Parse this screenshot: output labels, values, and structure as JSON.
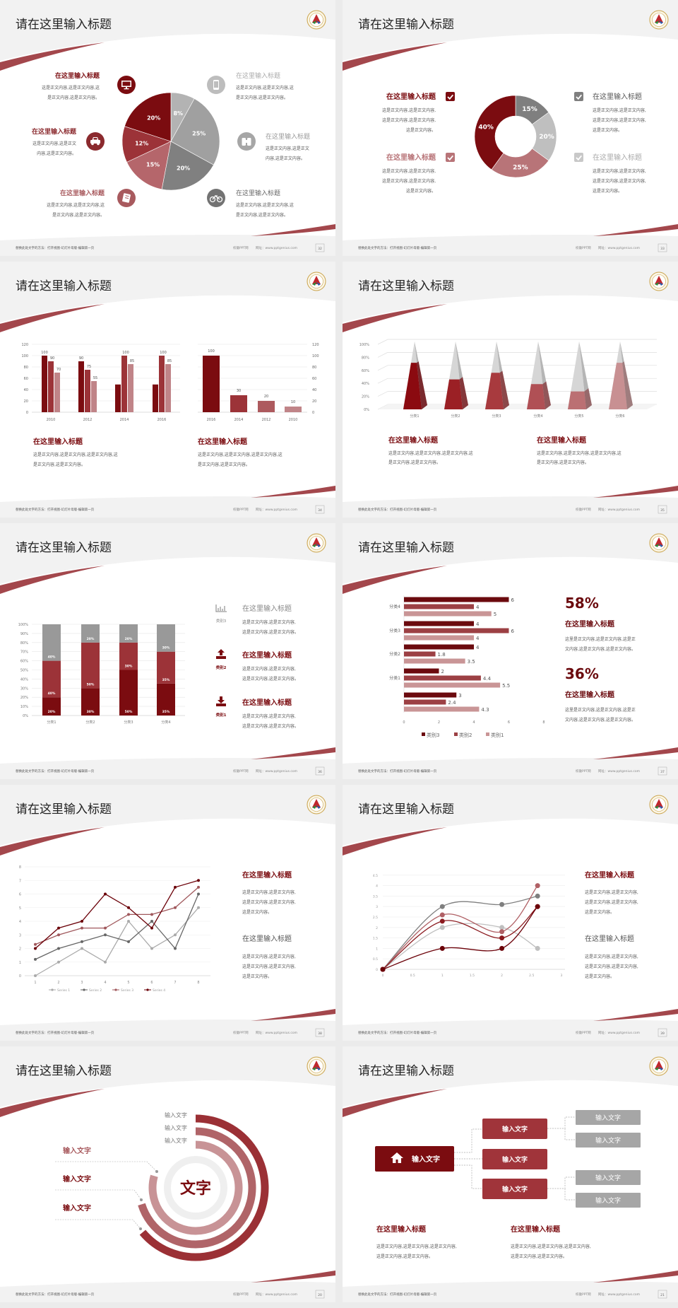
{
  "footer": {
    "left": "替换此处文字的方法：打开视图-幻灯片母版-编辑第一页",
    "site": "校徽PPT网",
    "url": "网址：www.pptgenius.com"
  },
  "colors": {
    "maroon": "#7b0c10",
    "red": "#9c3338",
    "rose": "#b26a6e",
    "pink": "#c99596",
    "gray": "#7f7f7f",
    "light_gray": "#bfbfbf"
  },
  "slides": [
    {
      "title": "请在这里输入标题",
      "page": "32",
      "items": [
        {
          "title": "在这里输入标题",
          "icon": "monitor-icon",
          "lines": [
            "这是正文内容,这是正文内容,这",
            "是正文内容,这是正文内容。"
          ]
        },
        {
          "title": "在这里输入标题",
          "icon": "car-icon",
          "lines": [
            "这是正文内容,这是正文",
            "内容,这是正文内容。"
          ]
        },
        {
          "title": "在这里输入标题",
          "icon": "book-icon",
          "lines": [
            "这是正文内容,这是正文内容,这",
            "是正文内容,这是正文内容。"
          ]
        },
        {
          "title": "在这里输入标题",
          "icon": "phone-icon",
          "lines": [
            "这是正文内容,这是正文内容,这",
            "是正文内容,这是正文内容。"
          ]
        },
        {
          "title": "在这里输入标题",
          "icon": "binoculars-icon",
          "lines": [
            "这是正文内容,这是正文",
            "内容,这是正文内容。"
          ]
        },
        {
          "title": "在这里输入标题",
          "icon": "bicycle-icon",
          "lines": [
            "这是正文内容,这是正文内容,这",
            "是正文内容,这是正文内容。"
          ]
        }
      ]
    },
    {
      "title": "请在这里输入标题",
      "page": "33",
      "items": [
        {
          "title": "在这里输入标题",
          "icon": "checkbox-checked-icon",
          "lines": [
            "这是正文内容,这是正文内容,",
            "这是正文内容,这是正文内容,",
            "这是正文内容。"
          ]
        },
        {
          "title": "在这里输入标题",
          "icon": "checkbox-checked-icon",
          "lines": [
            "这是正文内容,这是正文内容,",
            "这是正文内容,这是正文内容,",
            "这是正文内容。"
          ]
        },
        {
          "title": "在这里输入标题",
          "icon": "checkbox-checked-icon",
          "lines": [
            "这是正文内容,这是正文内容,",
            "这是正文内容,这是正文内容,",
            "这是正文内容。"
          ]
        },
        {
          "title": "在这里输入标题",
          "icon": "checkbox-checked-icon",
          "lines": [
            "这是正文内容,这是正文内容,",
            "这是正文内容,这是正文内容,",
            "这是正文内容。"
          ]
        }
      ]
    },
    {
      "title": "请在这里输入标题",
      "page": "34",
      "items": [
        {
          "title": "在这里输入标题",
          "lines": [
            "这是正文内容,这是正文内容,这是正文内容,这",
            "是正文内容,这是正文内容。"
          ]
        },
        {
          "title": "在这里输入标题",
          "lines": [
            "这是正文内容,这是正文内容,这是正文内容,这",
            "是正文内容,这是正文内容。"
          ]
        }
      ]
    },
    {
      "title": "请在这里输入标题",
      "page": "35",
      "items": [
        {
          "title": "在这里输入标题",
          "lines": [
            "这是正文内容,这是正文内容,这是正文内容,这",
            "是正文内容,这是正文内容。"
          ]
        },
        {
          "title": "在这里输入标题",
          "lines": [
            "这是正文内容,这是正文内容,这是正文内容,这",
            "是正文内容,这是正文内容。"
          ]
        }
      ]
    },
    {
      "title": "请在这里输入标题",
      "page": "36",
      "items": [
        {
          "label": "类别3",
          "icon": "bar-chart-icon",
          "title": "在这里输入标题",
          "lines": [
            "这是正文内容,这是正文内容,",
            "这是正文内容,这是正文内容。"
          ]
        },
        {
          "label": "类别2",
          "icon": "upload-icon",
          "title": "在这里输入标题",
          "lines": [
            "这是正文内容,这是正文内容,",
            "这是正文内容,这是正文内容。"
          ]
        },
        {
          "label": "类别1",
          "icon": "download-icon",
          "title": "在这里输入标题",
          "lines": [
            "这是正文内容,这是正文内容,",
            "这是正文内容,这是正文内容。"
          ]
        }
      ]
    },
    {
      "title": "请在这里输入标题",
      "page": "37",
      "items": [
        {
          "value": "58%",
          "title": "在这里输入标题",
          "lines": [
            "这里是正文内容,这是正文内容,这是正",
            "文内容,这是正文内容,这是正文内容。"
          ]
        },
        {
          "value": "36%",
          "title": "在这里输入标题",
          "lines": [
            "这里是正文内容,这是正文内容,这是正",
            "文内容,这是正文内容,这是正文内容。"
          ]
        }
      ]
    },
    {
      "title": "请在这里输入标题",
      "page": "38",
      "items": [
        {
          "title": "在这里输入标题",
          "lines": [
            "这是正文内容,这是正文内容,",
            "这是正文内容,这是正文内容,",
            "这是正文内容。"
          ]
        },
        {
          "title": "在这里输入标题",
          "lines": [
            "这是正文内容,这是正文内容,",
            "这是正文内容,这是正文内容,",
            "这是正文内容。"
          ]
        }
      ]
    },
    {
      "title": "请在这里输入标题",
      "page": "39",
      "items": [
        {
          "title": "在这里输入标题",
          "lines": [
            "这是正文内容,这是正文内容,",
            "这是正文内容,这是正文内容,",
            "这是正文内容。"
          ]
        },
        {
          "title": "在这里输入标题",
          "lines": [
            "这是正文内容,这是正文内容,",
            "这是正文内容,这是正文内容,",
            "这是正文内容。"
          ]
        }
      ]
    },
    {
      "title": "请在这里输入标题",
      "page": "20",
      "center": "文字",
      "ring_labels": [
        "输入文字",
        "输入文字",
        "输入文字"
      ],
      "side_labels": [
        "输入文字",
        "输入文字",
        "输入文字"
      ]
    },
    {
      "title": "请在这里输入标题",
      "page": "21",
      "root": "输入文字",
      "branches": [
        "输入文字",
        "输入文字",
        "输入文字"
      ],
      "leaves": [
        "输入文字",
        "输入文字",
        "输入文字",
        "输入文字"
      ],
      "items": [
        {
          "title": "在这里输入标题",
          "lines": [
            "这是正文内容,这是正文内容,这是正文内容,",
            "这是正文内容,这是正文内容。"
          ]
        },
        {
          "title": "在这里输入标题",
          "lines": [
            "这是正文内容,这是正文内容,这是正文内容,",
            "这是正文内容,这是正文内容。"
          ]
        }
      ]
    }
  ],
  "chart_data": [
    {
      "type": "pie",
      "values": [
        8,
        25,
        20,
        15,
        12,
        20
      ],
      "labels": [
        "8%",
        "25%",
        "20%",
        "15%",
        "12%",
        "20%"
      ],
      "colors": [
        "#b3b3b3",
        "#a0a0a0",
        "#808080",
        "#b5666b",
        "#9c3338",
        "#7b0c10"
      ]
    },
    {
      "type": "pie",
      "donut": true,
      "values": [
        15,
        20,
        25,
        40
      ],
      "labels": [
        "15%",
        "20%",
        "25%",
        "40%"
      ],
      "colors": [
        "#7f7f7f",
        "#bfbfbf",
        "#b87478",
        "#7b0c10"
      ]
    },
    {
      "type": "bar",
      "categories": [
        "2010",
        "2012",
        "2014",
        "2016"
      ],
      "ylim": [
        0,
        120
      ],
      "yticks": [
        "0",
        "20",
        "40",
        "60",
        "80",
        "100",
        "120"
      ],
      "grid": true,
      "series": [
        {
          "values": [
            100,
            90,
            49,
            49
          ],
          "data_labels": [
            "100",
            "90",
            null,
            null
          ],
          "color": "#7b0c10"
        },
        {
          "values": [
            90,
            75,
            100,
            100
          ],
          "data_labels": [
            "90",
            "75",
            "100",
            "100"
          ],
          "color": "#9c3338"
        },
        {
          "values": [
            70,
            55,
            85,
            85
          ],
          "data_labels": [
            "70",
            "55",
            "85",
            "85"
          ],
          "color": "#c08488"
        }
      ]
    },
    {
      "type": "bar",
      "categories": [
        "2016",
        "2014",
        "2012",
        "2010"
      ],
      "values": [
        100,
        30,
        20,
        10
      ],
      "ylim": [
        0,
        120
      ],
      "yticks": [
        "0",
        "20",
        "40",
        "60",
        "80",
        "100",
        "120"
      ],
      "y_axis_side": "right",
      "grid": true,
      "colors": [
        "#7b0c10",
        "#9c3338",
        "#ad5a5e",
        "#c08488"
      ]
    },
    {
      "type": "bar",
      "style": "3d-pyramid",
      "categories": [
        "分类1",
        "分类2",
        "分类3",
        "分类4",
        "分类5",
        "分类6"
      ],
      "values": [
        70,
        45,
        55,
        38,
        27,
        70
      ],
      "ylim": [
        0,
        100
      ],
      "yticks": [
        "0%",
        "20%",
        "40%",
        "60%",
        "80%",
        "100%"
      ],
      "grid": true,
      "colors": [
        "#8b0a10",
        "#9b2025",
        "#a83a3e",
        "#b05055",
        "#bb7073",
        "#c89092"
      ]
    },
    {
      "type": "bar",
      "stacked": true,
      "categories": [
        "分类1",
        "分类2",
        "分类3",
        "分类4"
      ],
      "ylim": [
        0,
        100
      ],
      "yticks": [
        "0%",
        "10%",
        "20%",
        "30%",
        "40%",
        "50%",
        "60%",
        "70%",
        "80%",
        "90%",
        "100%"
      ],
      "grid": true,
      "series": [
        {
          "values": [
            20,
            30,
            50,
            35
          ],
          "labels": [
            "20%",
            "30%",
            "50%",
            "35%"
          ],
          "color": "#7b0c10"
        },
        {
          "values": [
            40,
            50,
            30,
            35
          ],
          "labels": [
            "40%",
            "50%",
            "30%",
            "35%"
          ],
          "color": "#9c3338"
        },
        {
          "values": [
            40,
            20,
            20,
            30
          ],
          "labels": [
            "40%",
            "20%",
            "20%",
            "30%"
          ],
          "color": "#999999"
        }
      ]
    },
    {
      "type": "bar",
      "orientation": "horizontal",
      "categories": [
        "",
        "分类1",
        "分类2",
        "分类3",
        "分类4"
      ],
      "xlim": [
        0,
        8
      ],
      "xticks": [
        "0",
        "2",
        "4",
        "6",
        "8"
      ],
      "legend": "bottom",
      "series": [
        {
          "name": "类别3",
          "values": [
            3,
            2,
            4,
            4,
            6
          ],
          "color": "#6b0a0e"
        },
        {
          "name": "类别2",
          "values": [
            2.4,
            4.4,
            1.8,
            6,
            4
          ],
          "color": "#9c4044"
        },
        {
          "name": "类别1",
          "values": [
            4.3,
            5.5,
            3.5,
            4,
            5
          ],
          "color": "#c99596"
        }
      ]
    },
    {
      "type": "line",
      "x": [
        1,
        2,
        3,
        4,
        5,
        6,
        7,
        8
      ],
      "ylim": [
        0,
        8
      ],
      "xticks": [
        "1",
        "2",
        "3",
        "4",
        "5",
        "6",
        "7",
        "8"
      ],
      "yticks": [
        "0",
        "1",
        "2",
        "3",
        "4",
        "5",
        "6",
        "7",
        "8"
      ],
      "grid": true,
      "legend": "bottom",
      "series": [
        {
          "name": "Series 1",
          "values": [
            0,
            1,
            2,
            1,
            4,
            2,
            3,
            5
          ],
          "color": "#aaaaaa"
        },
        {
          "name": "Series 2",
          "values": [
            1.2,
            2,
            2.5,
            3,
            2.5,
            4,
            2,
            6
          ],
          "color": "#666666"
        },
        {
          "name": "Series 3",
          "values": [
            2.3,
            3,
            3.5,
            3.5,
            4.5,
            4.5,
            5,
            6.5
          ],
          "color": "#a0585c"
        },
        {
          "name": "Series 4",
          "values": [
            2,
            3.5,
            4,
            6,
            5,
            3.5,
            6.5,
            7
          ],
          "color": "#6b0008"
        }
      ]
    },
    {
      "type": "scatter",
      "smooth": true,
      "x": [
        0,
        1,
        2,
        2.6
      ],
      "xlim": [
        0,
        3
      ],
      "ylim": [
        0,
        4.5
      ],
      "xticks": [
        "0",
        "0.5",
        "1",
        "1.5",
        "2",
        "2.5",
        "3"
      ],
      "yticks": [
        "0",
        "0.5",
        "1",
        "1.5",
        "2",
        "2.5",
        "3",
        "3.5",
        "4",
        "4.5"
      ],
      "grid": true,
      "series": [
        {
          "values": [
            0,
            3,
            3.1,
            3.5
          ],
          "color": "#7f7f7f"
        },
        {
          "values": [
            0,
            2,
            2,
            1
          ],
          "color": "#bfbfbf"
        },
        {
          "values": [
            0,
            2.6,
            1.8,
            4
          ],
          "color": "#b06065"
        },
        {
          "values": [
            0,
            2.3,
            1.5,
            3
          ],
          "color": "#8b1a1f"
        },
        {
          "values": [
            0,
            1,
            1,
            3
          ],
          "color": "#6b0008"
        }
      ]
    }
  ]
}
